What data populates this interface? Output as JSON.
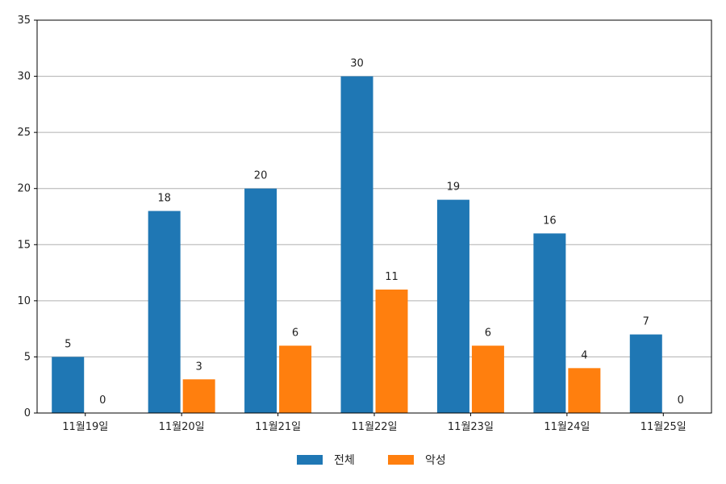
{
  "chart_data": {
    "type": "bar",
    "categories": [
      "11월19일",
      "11월20일",
      "11월21일",
      "11월22일",
      "11월23일",
      "11월24일",
      "11월25일"
    ],
    "series": [
      {
        "name": "전체",
        "values": [
          5,
          18,
          20,
          30,
          19,
          16,
          7
        ],
        "color": "#1f77b4"
      },
      {
        "name": "악성",
        "values": [
          0,
          3,
          6,
          11,
          6,
          4,
          0
        ],
        "color": "#ff7f0e"
      }
    ],
    "ylim": [
      0,
      35
    ],
    "yticks": [
      0,
      5,
      10,
      15,
      20,
      25,
      30,
      35
    ],
    "grid": "horizontal",
    "legend_position": "bottom-center",
    "data_labels": true,
    "title": "",
    "xlabel": "",
    "ylabel": ""
  }
}
